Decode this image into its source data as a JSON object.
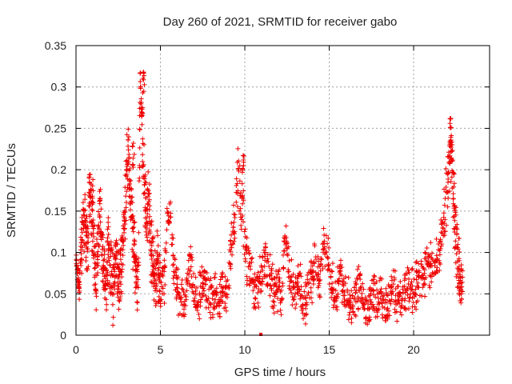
{
  "chart_data": {
    "type": "scatter",
    "title": "Day 260 of 2021, SRMTID for receiver gabo",
    "xlabel": "GPS time / hours",
    "ylabel": "SRMTID / TECUs",
    "xlim": [
      0,
      24.5
    ],
    "ylim": [
      0,
      0.35
    ],
    "xticks": [
      0,
      5,
      10,
      15,
      20
    ],
    "xtick_labels": [
      "0",
      "5",
      "10",
      "15",
      "20"
    ],
    "yticks": [
      0,
      0.05,
      0.1,
      0.15,
      0.2,
      0.25,
      0.3,
      0.35
    ],
    "ytick_labels": [
      "0",
      "0.05",
      "0.1",
      "0.15",
      "0.2",
      "0.25",
      "0.3",
      "0.35"
    ],
    "grid": true,
    "marker": "+",
    "color": "#ee0000",
    "series": [
      {
        "name": "SRMTID",
        "x": [
          0.0,
          0.1,
          0.2,
          0.3,
          0.4,
          0.5,
          0.6,
          0.7,
          0.8,
          0.9,
          1.0,
          1.1,
          1.2,
          1.3,
          1.4,
          1.5,
          1.6,
          1.7,
          1.8,
          1.9,
          2.0,
          2.1,
          2.2,
          2.3,
          2.4,
          2.5,
          2.6,
          2.7,
          2.8,
          2.9,
          3.0,
          3.1,
          3.2,
          3.3,
          3.4,
          3.5,
          3.6,
          3.7,
          3.8,
          3.9,
          4.0,
          4.1,
          4.2,
          4.3,
          4.4,
          4.5,
          4.6,
          4.7,
          4.8,
          4.9,
          5.0,
          5.2,
          5.4,
          5.6,
          5.8,
          6.0,
          6.2,
          6.4,
          6.6,
          6.8,
          7.0,
          7.2,
          7.4,
          7.6,
          7.8,
          8.0,
          8.2,
          8.4,
          8.6,
          8.8,
          9.0,
          9.2,
          9.4,
          9.6,
          9.8,
          10.0,
          10.2,
          10.4,
          10.6,
          10.8,
          11.0,
          11.2,
          11.4,
          11.6,
          11.8,
          12.0,
          12.2,
          12.4,
          12.6,
          12.8,
          13.0,
          13.2,
          13.4,
          13.6,
          13.8,
          14.0,
          14.2,
          14.4,
          14.6,
          14.8,
          15.0,
          15.2,
          15.4,
          15.6,
          15.8,
          16.0,
          16.2,
          16.4,
          16.6,
          16.8,
          17.0,
          17.2,
          17.4,
          17.6,
          17.8,
          18.0,
          18.2,
          18.4,
          18.6,
          18.8,
          19.0,
          19.2,
          19.4,
          19.6,
          19.8,
          20.0,
          20.2,
          20.4,
          20.6,
          20.8,
          21.0,
          21.2,
          21.4,
          21.6,
          21.8,
          22.0,
          22.1,
          22.2,
          22.3,
          22.4,
          22.5,
          22.6,
          22.7,
          22.8,
          22.9
        ],
        "y": [
          0.09,
          0.075,
          0.06,
          0.1,
          0.13,
          0.145,
          0.12,
          0.1,
          0.18,
          0.155,
          0.13,
          0.085,
          0.07,
          0.11,
          0.14,
          0.12,
          0.09,
          0.065,
          0.075,
          0.11,
          0.09,
          0.07,
          0.055,
          0.08,
          0.1,
          0.075,
          0.06,
          0.09,
          0.12,
          0.15,
          0.2,
          0.23,
          0.165,
          0.145,
          0.11,
          0.09,
          0.07,
          0.08,
          0.31,
          0.265,
          0.205,
          0.16,
          0.14,
          0.17,
          0.12,
          0.1,
          0.08,
          0.06,
          0.09,
          0.075,
          0.06,
          0.055,
          0.13,
          0.15,
          0.085,
          0.05,
          0.045,
          0.035,
          0.06,
          0.09,
          0.045,
          0.04,
          0.05,
          0.07,
          0.045,
          0.04,
          0.05,
          0.035,
          0.06,
          0.045,
          0.06,
          0.11,
          0.14,
          0.205,
          0.155,
          0.12,
          0.085,
          0.07,
          0.05,
          0.06,
          0.075,
          0.09,
          0.08,
          0.06,
          0.05,
          0.06,
          0.045,
          0.13,
          0.08,
          0.06,
          0.05,
          0.075,
          0.045,
          0.04,
          0.06,
          0.07,
          0.09,
          0.06,
          0.1,
          0.11,
          0.08,
          0.06,
          0.045,
          0.08,
          0.06,
          0.05,
          0.04,
          0.035,
          0.045,
          0.06,
          0.04,
          0.03,
          0.035,
          0.05,
          0.04,
          0.045,
          0.035,
          0.03,
          0.045,
          0.06,
          0.04,
          0.05,
          0.045,
          0.055,
          0.06,
          0.05,
          0.065,
          0.075,
          0.07,
          0.09,
          0.08,
          0.095,
          0.1,
          0.11,
          0.14,
          0.18,
          0.21,
          0.225,
          0.19,
          0.15,
          0.12,
          0.1,
          0.08,
          0.06,
          0.055
        ],
        "noise": [
          0.01,
          0.02,
          0.02,
          0.03,
          0.03,
          0.03,
          0.03,
          0.03,
          0.03,
          0.03,
          0.03,
          0.03,
          0.03,
          0.03,
          0.03,
          0.03,
          0.03,
          0.03,
          0.03,
          0.03,
          0.03,
          0.03,
          0.03,
          0.03,
          0.03,
          0.03,
          0.03,
          0.03,
          0.03,
          0.03,
          0.03,
          0.03,
          0.03,
          0.03,
          0.03,
          0.03,
          0.03,
          0.03,
          0.01,
          0.03,
          0.03,
          0.03,
          0.03,
          0.03,
          0.03,
          0.03,
          0.03,
          0.03,
          0.03,
          0.03,
          0.02,
          0.02,
          0.02,
          0.02,
          0.02,
          0.02,
          0.02,
          0.02,
          0.02,
          0.02,
          0.02,
          0.02,
          0.02,
          0.02,
          0.02,
          0.02,
          0.02,
          0.02,
          0.02,
          0.02,
          0.02,
          0.02,
          0.03,
          0.03,
          0.03,
          0.03,
          0.02,
          0.02,
          0.02,
          0.02,
          0.02,
          0.02,
          0.02,
          0.02,
          0.02,
          0.02,
          0.02,
          0.02,
          0.02,
          0.02,
          0.02,
          0.02,
          0.02,
          0.02,
          0.02,
          0.02,
          0.02,
          0.02,
          0.02,
          0.02,
          0.02,
          0.02,
          0.02,
          0.02,
          0.02,
          0.02,
          0.02,
          0.02,
          0.02,
          0.02,
          0.02,
          0.02,
          0.02,
          0.02,
          0.02,
          0.02,
          0.02,
          0.02,
          0.02,
          0.02,
          0.02,
          0.02,
          0.02,
          0.02,
          0.02,
          0.02,
          0.02,
          0.02,
          0.02,
          0.02,
          0.02,
          0.02,
          0.02,
          0.02,
          0.03,
          0.03,
          0.03,
          0.03,
          0.03,
          0.03,
          0.03,
          0.03,
          0.02,
          0.02,
          0.02
        ],
        "samples_per_x": 14,
        "peaks": [
          {
            "x": 4.0,
            "y": 0.318
          },
          {
            "x": 22.2,
            "y": 0.262
          },
          {
            "x": 9.9,
            "y": 0.217
          },
          {
            "x": 3.4,
            "y": 0.232
          },
          {
            "x": 1.0,
            "y": 0.188
          }
        ],
        "outliers": [
          {
            "x": 10.95,
            "y": 0.0
          }
        ]
      }
    ]
  }
}
